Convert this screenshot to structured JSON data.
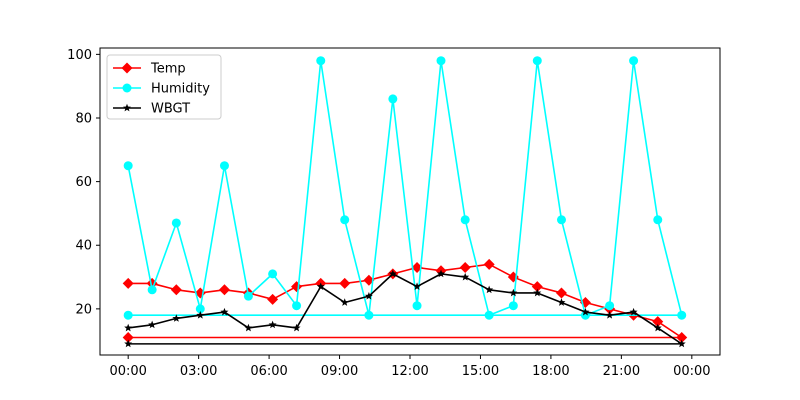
{
  "chart_data": {
    "type": "line",
    "title": "",
    "xlabel": "",
    "ylabel": "",
    "x_ticks": [
      "00:00",
      "03:00",
      "06:00",
      "09:00",
      "12:00",
      "15:00",
      "18:00",
      "21:00",
      "00:00"
    ],
    "x_tick_hours": [
      0,
      3,
      6,
      9,
      12,
      15,
      18,
      21,
      24
    ],
    "y_ticks": [
      20,
      40,
      60,
      80,
      100
    ],
    "xlim": [
      -1.2,
      25.2
    ],
    "ylim": [
      5.5,
      102
    ],
    "legend_position": "top-left",
    "x": [
      0,
      1.02,
      2.05,
      3.07,
      4.1,
      5.12,
      6.15,
      7.17,
      8.2,
      9.22,
      10.25,
      11.27,
      12.3,
      13.32,
      14.35,
      15.37,
      16.4,
      17.42,
      18.45,
      19.47,
      20.5,
      21.52,
      22.55,
      23.57
    ],
    "series": [
      {
        "name": "Temp",
        "color": "#ff0000",
        "marker": "diamond",
        "values": [
          28,
          28,
          26,
          25,
          26,
          25,
          23,
          27,
          28,
          28,
          29,
          31,
          33,
          32,
          33,
          34,
          30,
          27,
          25,
          22,
          20,
          18,
          16,
          11
        ],
        "closing_value": 11
      },
      {
        "name": "Humidity",
        "color": "#00ffff",
        "marker": "circle",
        "values": [
          65,
          26,
          47,
          20,
          65,
          24,
          31,
          21,
          98,
          48,
          18,
          86,
          21,
          98,
          48,
          18,
          21,
          98,
          48,
          18,
          21,
          98,
          48,
          18
        ],
        "closing_value": 18
      },
      {
        "name": "WBGT",
        "color": "#000000",
        "marker": "star",
        "values": [
          14,
          15,
          17,
          18,
          19,
          14,
          15,
          14,
          27,
          22,
          24,
          31,
          27,
          31,
          30,
          26,
          25,
          25,
          22,
          19,
          18,
          19,
          14,
          9
        ],
        "closing_value": 9
      }
    ]
  }
}
